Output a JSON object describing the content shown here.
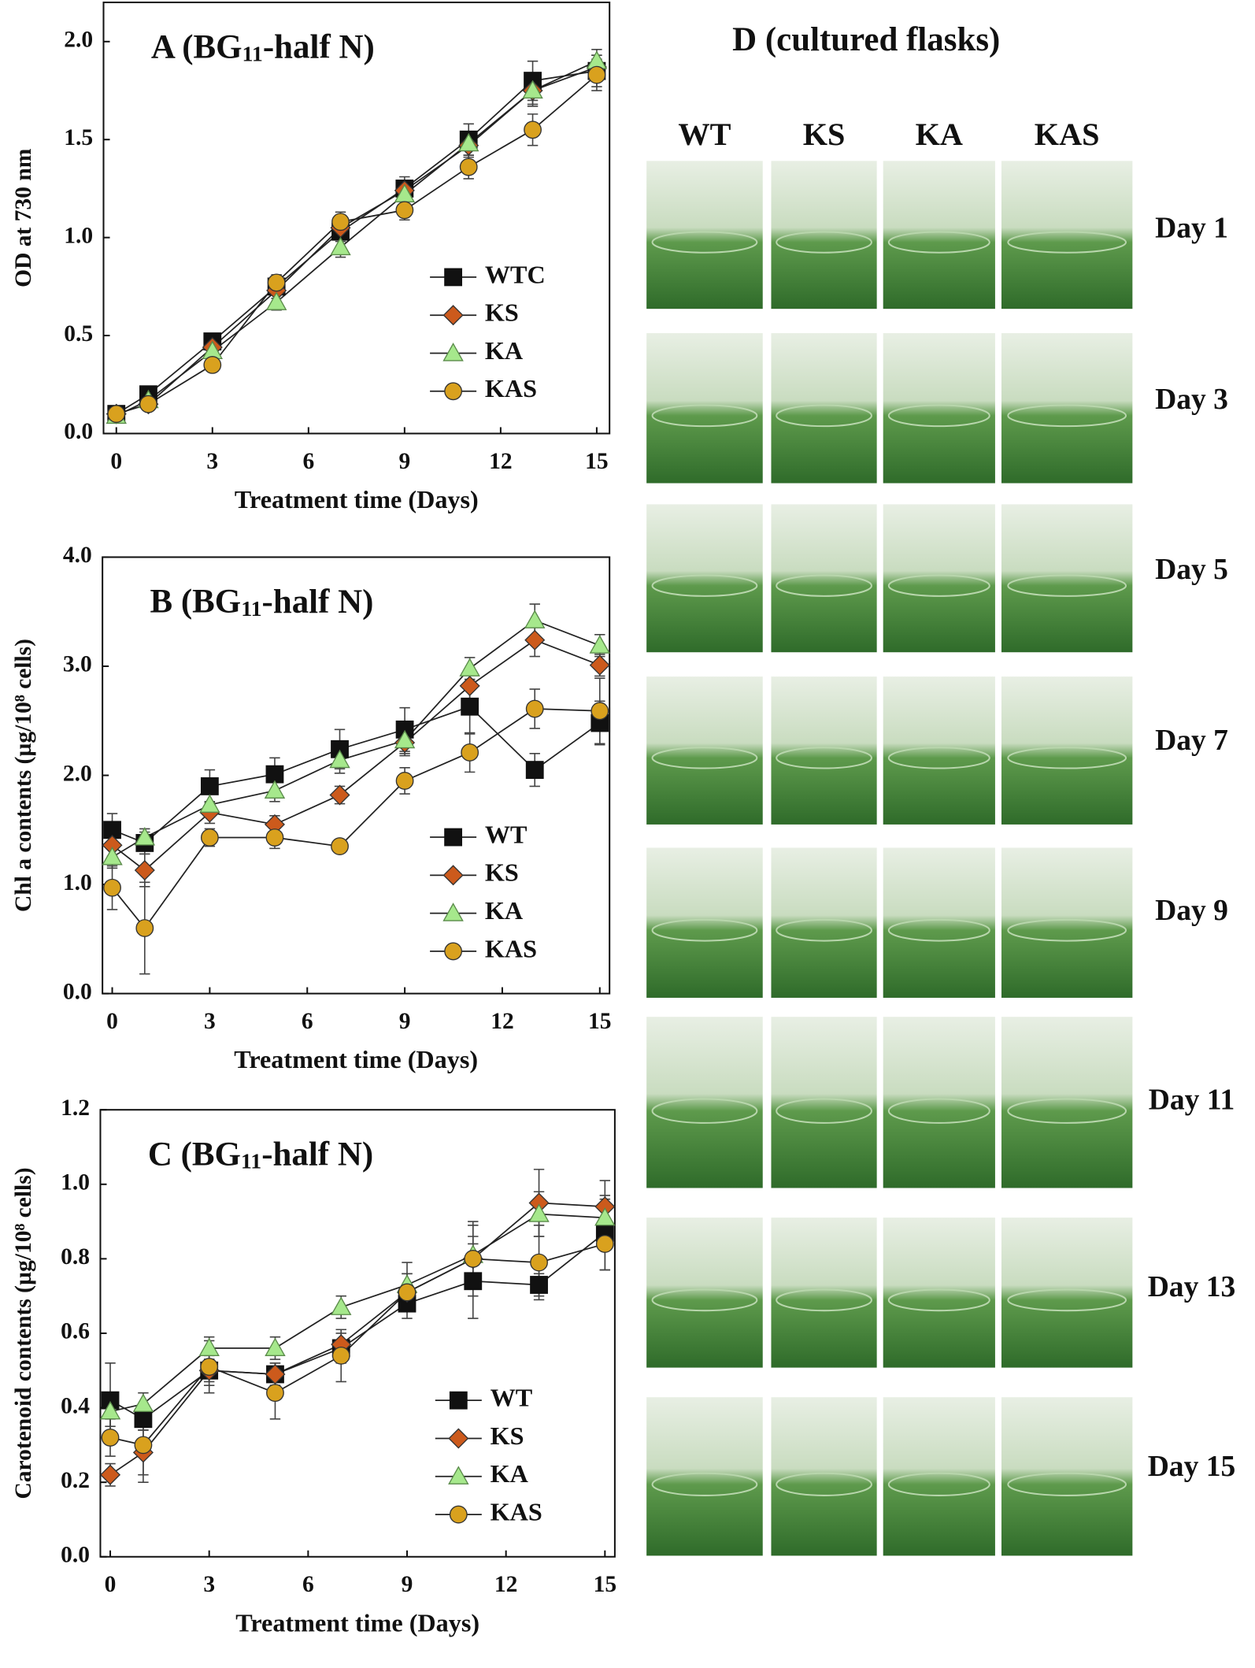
{
  "chart_data": [
    {
      "type": "line",
      "title": "A  (BG11-half N)",
      "ylabel": "OD at 730 nm",
      "xlabel": "Treatment time (Days)",
      "x": [
        0,
        1,
        3,
        5,
        7,
        9,
        11,
        13,
        15
      ],
      "xlim": [
        -0.4,
        15.4
      ],
      "xticks": [
        0,
        3,
        6,
        9,
        12,
        15
      ],
      "ylim": [
        0,
        2.2
      ],
      "yticks": [
        {
          "value": 0,
          "label": "0.0"
        },
        {
          "value": 0.5,
          "label": "0.5"
        },
        {
          "value": 1,
          "label": "1.0"
        },
        {
          "value": 1.5,
          "label": "1.5"
        },
        {
          "value": 2,
          "label": "2.0"
        }
      ],
      "legend": "lower right",
      "series": [
        {
          "name": "WTC",
          "color": "#111111",
          "marker": "square",
          "values": [
            0.1,
            0.2,
            0.47,
            0.75,
            1.03,
            1.25,
            1.5,
            1.8,
            1.85
          ],
          "errors": [
            0.02,
            0.02,
            0.03,
            0.04,
            0.05,
            0.06,
            0.08,
            0.1,
            0.08
          ]
        },
        {
          "name": "KS",
          "color": "#cc5a1c",
          "marker": "diamond",
          "values": [
            0.1,
            0.15,
            0.44,
            0.73,
            1.05,
            1.24,
            1.47,
            1.75,
            1.87
          ],
          "errors": [
            0.02,
            0.02,
            0.03,
            0.04,
            0.05,
            0.05,
            0.06,
            0.08,
            0.06
          ]
        },
        {
          "name": "KA",
          "color": "#a6e88c",
          "marker": "triangle",
          "values": [
            0.09,
            0.17,
            0.42,
            0.67,
            0.95,
            1.22,
            1.48,
            1.75,
            1.9
          ],
          "errors": [
            0.02,
            0.02,
            0.03,
            0.04,
            0.05,
            0.05,
            0.06,
            0.07,
            0.06
          ]
        },
        {
          "name": "KAS",
          "color": "#d9a11e",
          "marker": "circle",
          "values": [
            0.1,
            0.15,
            0.35,
            0.77,
            1.08,
            1.14,
            1.36,
            1.55,
            1.83
          ],
          "errors": [
            0.02,
            0.02,
            0.03,
            0.04,
            0.05,
            0.05,
            0.06,
            0.08,
            0.08
          ]
        }
      ]
    },
    {
      "type": "line",
      "title": "B  (BG11-half N)",
      "ylabel": "Chl a contents (µg/10⁸ cells)",
      "xlabel": "Treatment time (Days)",
      "x": [
        0,
        1,
        3,
        5,
        7,
        9,
        11,
        13,
        15
      ],
      "xlim": [
        -0.3,
        15.3
      ],
      "xticks": [
        0,
        3,
        6,
        9,
        12,
        15
      ],
      "ylim": [
        0,
        4
      ],
      "yticks": [
        {
          "value": 0,
          "label": "0.0"
        },
        {
          "value": 1,
          "label": "1.0"
        },
        {
          "value": 2,
          "label": "2.0"
        },
        {
          "value": 3,
          "label": "3.0"
        },
        {
          "value": 4,
          "label": "4.0"
        }
      ],
      "legend": "lower right",
      "series": [
        {
          "name": "WT",
          "color": "#111111",
          "marker": "square",
          "values": [
            1.5,
            1.38,
            1.9,
            2.01,
            2.24,
            2.42,
            2.63,
            2.05,
            2.48
          ],
          "errors": [
            0.15,
            0.1,
            0.15,
            0.15,
            0.18,
            0.2,
            0.25,
            0.15,
            0.2
          ]
        },
        {
          "name": "KS",
          "color": "#cc5a1c",
          "marker": "diamond",
          "values": [
            1.36,
            1.13,
            1.66,
            1.55,
            1.82,
            2.3,
            2.82,
            3.24,
            3.01
          ],
          "errors": [
            0.1,
            0.15,
            0.1,
            0.08,
            0.08,
            0.12,
            0.15,
            0.15,
            0.1
          ]
        },
        {
          "name": "KA",
          "color": "#a6e88c",
          "marker": "triangle",
          "values": [
            1.25,
            1.43,
            1.73,
            1.86,
            2.14,
            2.32,
            2.98,
            3.42,
            3.19
          ],
          "errors": [
            0.1,
            0.08,
            0.1,
            0.1,
            0.12,
            0.12,
            0.1,
            0.15,
            0.1
          ]
        },
        {
          "name": "KAS",
          "color": "#d9a11e",
          "marker": "circle",
          "values": [
            0.97,
            0.6,
            1.43,
            1.43,
            1.35,
            1.95,
            2.21,
            2.61,
            2.59
          ],
          "errors": [
            0.2,
            0.42,
            0.08,
            0.1,
            0.06,
            0.12,
            0.18,
            0.18,
            0.3
          ]
        }
      ]
    },
    {
      "type": "line",
      "title": "C  (BG11-half N)",
      "ylabel": "Carotenoid contents (µg/10⁸ cells)",
      "xlabel": "Treatment time (Days)",
      "x": [
        0,
        1,
        3,
        5,
        7,
        9,
        11,
        13,
        15
      ],
      "xlim": [
        -0.3,
        15.3
      ],
      "xticks": [
        0,
        3,
        6,
        9,
        12,
        15
      ],
      "ylim": [
        0,
        1.2
      ],
      "yticks": [
        {
          "value": 0,
          "label": "0.0"
        },
        {
          "value": 0.2,
          "label": "0.2"
        },
        {
          "value": 0.4,
          "label": "0.4"
        },
        {
          "value": 0.6,
          "label": "0.6"
        },
        {
          "value": 0.8,
          "label": "0.8"
        },
        {
          "value": 1,
          "label": "1.0"
        },
        {
          "value": 1.2,
          "label": "1.2"
        }
      ],
      "legend": "lower right",
      "series": [
        {
          "name": "WT",
          "color": "#111111",
          "marker": "square",
          "values": [
            0.42,
            0.37,
            0.5,
            0.49,
            0.56,
            0.68,
            0.74,
            0.73,
            0.87
          ],
          "errors": [
            0.1,
            0.03,
            0.04,
            0.03,
            0.04,
            0.04,
            0.1,
            0.03,
            0.1
          ]
        },
        {
          "name": "KS",
          "color": "#cc5a1c",
          "marker": "diamond",
          "values": [
            0.22,
            0.28,
            0.5,
            0.49,
            0.57,
            0.71,
            0.8,
            0.95,
            0.94
          ],
          "errors": [
            0.03,
            0.06,
            0.03,
            0.03,
            0.04,
            0.05,
            0.06,
            0.09,
            0.07
          ]
        },
        {
          "name": "KA",
          "color": "#a6e88c",
          "marker": "triangle",
          "values": [
            0.39,
            0.41,
            0.56,
            0.56,
            0.67,
            0.73,
            0.81,
            0.92,
            0.91
          ],
          "errors": [
            0.04,
            0.03,
            0.03,
            0.03,
            0.03,
            0.06,
            0.08,
            0.06,
            0.05
          ]
        },
        {
          "name": "KAS",
          "color": "#d9a11e",
          "marker": "circle",
          "values": [
            0.32,
            0.3,
            0.51,
            0.44,
            0.54,
            0.71,
            0.8,
            0.79,
            0.84
          ],
          "errors": [
            0.05,
            0.1,
            0.07,
            0.07,
            0.07,
            0.05,
            0.1,
            0.1,
            0.07
          ]
        }
      ]
    }
  ],
  "photo_panel": {
    "title": "D  (cultured flasks)",
    "columns": [
      "WT",
      "KS",
      "KA",
      "KAS"
    ],
    "rows": [
      "Day 1",
      "Day 3",
      "Day 5",
      "Day 7",
      "Day 9",
      "Day 11",
      "Day 13",
      "Day 15"
    ]
  }
}
